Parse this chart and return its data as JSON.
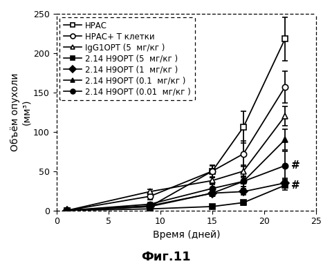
{
  "title": "",
  "xlabel": "Время (дней)",
  "ylabel": "Объём опухоли\n(мм³)",
  "caption": "Фиг.11",
  "xlim": [
    0,
    25
  ],
  "ylim": [
    0,
    250
  ],
  "xticks": [
    0,
    5,
    10,
    15,
    20,
    25
  ],
  "yticks": [
    0,
    50,
    100,
    150,
    200,
    250
  ],
  "series": [
    {
      "label": "НРАС",
      "x": [
        1,
        9,
        15,
        18,
        22
      ],
      "y": [
        0,
        5,
        50,
        106,
        218
      ],
      "yerr": [
        0,
        3,
        8,
        20,
        28
      ],
      "marker": "s",
      "filled": false
    },
    {
      "label": "НРАС+ Т клетки",
      "x": [
        1,
        9,
        15,
        18,
        22
      ],
      "y": [
        0,
        18,
        50,
        72,
        157
      ],
      "yerr": [
        0,
        4,
        7,
        16,
        20
      ],
      "marker": "o",
      "filled": false
    },
    {
      "label": "IgG1ОРТ (5  мг/кг )",
      "x": [
        1,
        9,
        15,
        18,
        22
      ],
      "y": [
        0,
        24,
        38,
        50,
        120
      ],
      "yerr": [
        0,
        3,
        4,
        8,
        12
      ],
      "marker": "^",
      "filled": false
    },
    {
      "label": "2.14 Н9ОРТ (5  мг/кг )",
      "x": [
        1,
        9,
        15,
        18,
        22
      ],
      "y": [
        0,
        2,
        5,
        10,
        32
      ],
      "yerr": [
        0,
        1,
        2,
        3,
        6
      ],
      "marker": "s",
      "filled": true,
      "hash": true
    },
    {
      "label": "2.14 Н9ОРТ (1  мг/кг )",
      "x": [
        1,
        9,
        15,
        18,
        22
      ],
      "y": [
        0,
        5,
        22,
        24,
        35
      ],
      "yerr": [
        0,
        2,
        4,
        4,
        6
      ],
      "marker": "D",
      "filled": true
    },
    {
      "label": "2.14 Н9ОРТ (0.1  мг/кг )",
      "x": [
        1,
        9,
        15,
        18,
        22
      ],
      "y": [
        0,
        6,
        22,
        37,
        90
      ],
      "yerr": [
        0,
        2,
        4,
        7,
        13
      ],
      "marker": "^",
      "filled": true
    },
    {
      "label": "2.14 Н9ОРТ (0.01  мг/кг )",
      "x": [
        1,
        9,
        15,
        18,
        22
      ],
      "y": [
        0,
        8,
        28,
        37,
        57
      ],
      "yerr": [
        0,
        2,
        5,
        7,
        18
      ],
      "marker": "o",
      "filled": true,
      "hash": true
    }
  ],
  "legend_label_T": "НРАС+ Т",
  "legend_label_T_sub": " клетки",
  "legend_fontsize": 8.5,
  "axis_fontsize": 10,
  "tick_fontsize": 9,
  "caption_fontsize": 13,
  "background_color": "#ffffff"
}
